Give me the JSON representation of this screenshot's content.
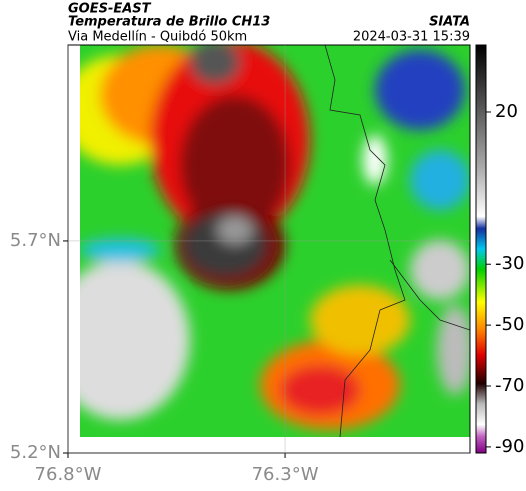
{
  "header": {
    "source": "GOES-EAST",
    "product": "Temperatura de Brillo CH13",
    "route": "Via Medellín - Quibdó 50km",
    "org": "SIATA",
    "time": "2024-03-31 15:39"
  },
  "map": {
    "xlim": [
      -76.8,
      -75.874
    ],
    "ylim": [
      5.2,
      6.162
    ],
    "xticks": [
      {
        "value": -76.8,
        "label": "76.8°W"
      },
      {
        "value": -76.3,
        "label": "76.3°W"
      }
    ],
    "yticks": [
      {
        "value": 5.2,
        "label": "5.2°N"
      },
      {
        "value": 5.7,
        "label": "5.7°N"
      }
    ],
    "grid": true
  },
  "colorbar": {
    "clim": [
      -92,
      42
    ],
    "ticks": [
      20,
      -30,
      -50,
      -70,
      -90
    ]
  }
}
